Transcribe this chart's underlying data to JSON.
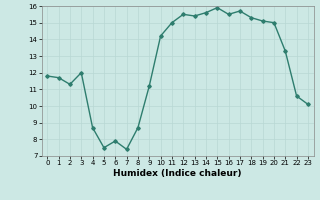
{
  "x": [
    0,
    1,
    2,
    3,
    4,
    5,
    6,
    7,
    8,
    9,
    10,
    11,
    12,
    13,
    14,
    15,
    16,
    17,
    18,
    19,
    20,
    21,
    22,
    23
  ],
  "y": [
    11.8,
    11.7,
    11.3,
    12.0,
    8.7,
    7.5,
    7.9,
    7.4,
    8.7,
    11.2,
    14.2,
    15.0,
    15.5,
    15.4,
    15.6,
    15.9,
    15.5,
    15.7,
    15.3,
    15.1,
    15.0,
    13.3,
    10.6,
    10.1
  ],
  "xlabel": "Humidex (Indice chaleur)",
  "ylim": [
    7,
    16
  ],
  "xlim_min": -0.5,
  "xlim_max": 23.5,
  "yticks": [
    7,
    8,
    9,
    10,
    11,
    12,
    13,
    14,
    15,
    16
  ],
  "xticks": [
    0,
    1,
    2,
    3,
    4,
    5,
    6,
    7,
    8,
    9,
    10,
    11,
    12,
    13,
    14,
    15,
    16,
    17,
    18,
    19,
    20,
    21,
    22,
    23
  ],
  "line_color": "#2e7d6e",
  "bg_color": "#cce8e4",
  "grid_color": "#b8d8d4",
  "marker": "D",
  "marker_size": 1.8,
  "line_width": 1.0,
  "tick_fontsize": 5.0,
  "xlabel_fontsize": 6.5
}
